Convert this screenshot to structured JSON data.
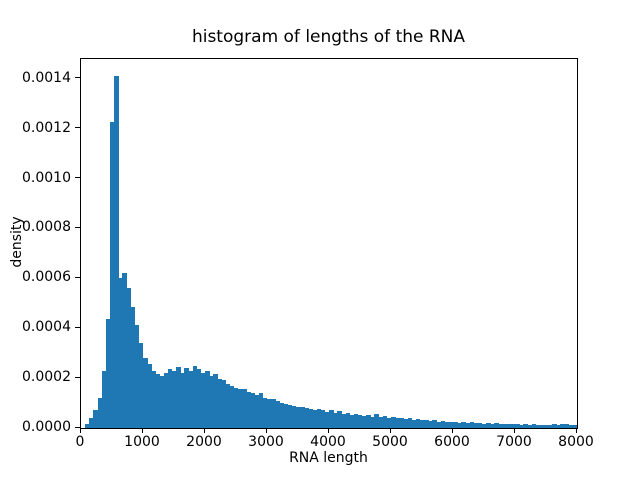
{
  "figure": {
    "background_color": "#ffffff",
    "text_color": "#000000"
  },
  "chart_data": {
    "type": "bar",
    "variant": "histogram",
    "title": "histogram of lengths of the RNA",
    "xlabel": "RNA length",
    "ylabel": "density",
    "bar_color": "#1f77b4",
    "grid": false,
    "legend": null,
    "xlim": [
      0,
      8000
    ],
    "ylim": [
      0,
      0.001479
    ],
    "bin_start": 0,
    "bin_width": 66.6667,
    "x_ticks": [
      0,
      1000,
      2000,
      3000,
      4000,
      5000,
      6000,
      7000,
      8000
    ],
    "x_tick_labels": [
      "0",
      "1000",
      "2000",
      "3000",
      "4000",
      "5000",
      "6000",
      "7000",
      "8000"
    ],
    "y_ticks": [
      0.0,
      0.0002,
      0.0004,
      0.0006,
      0.0008,
      0.001,
      0.0012,
      0.0014
    ],
    "y_tick_labels": [
      "0.0000",
      "0.0002",
      "0.0004",
      "0.0006",
      "0.0008",
      "0.0010",
      "0.0012",
      "0.0014"
    ],
    "values": [
      2e-06,
      1.5e-05,
      4.1e-05,
      7.4e-05,
      0.00012,
      0.00023,
      0.000435,
      0.001228,
      0.001412,
      0.0006,
      0.00062,
      0.00056,
      0.000487,
      0.000414,
      0.000341,
      0.000281,
      0.000255,
      0.000228,
      0.000215,
      0.000208,
      0.000221,
      0.000235,
      0.000228,
      0.000244,
      0.000221,
      0.000239,
      0.000228,
      0.000248,
      0.000237,
      0.000219,
      0.000228,
      0.000208,
      0.000217,
      0.000197,
      0.000191,
      0.000175,
      0.000168,
      0.000161,
      0.000155,
      0.000157,
      0.000144,
      0.000139,
      0.000131,
      0.000139,
      0.000121,
      0.000115,
      0.000117,
      0.000108,
      0.000101,
      9.5e-05,
      9.1e-05,
      8.8e-05,
      8.4e-05,
      8.6e-05,
      8e-05,
      7.8e-05,
      7.4e-05,
      7.6e-05,
      7.1e-05,
      6.5e-05,
      7.1e-05,
      6.1e-05,
      6.8e-05,
      5.7e-05,
      6.1e-05,
      5.2e-05,
      5.5e-05,
      5.1e-05,
      4.8e-05,
      5.1e-05,
      4.5e-05,
      5.5e-05,
      4.4e-05,
      4.7e-05,
      4.1e-05,
      4.4e-05,
      3.9e-05,
      4.1e-05,
      3.6e-05,
      3.9e-05,
      3.3e-05,
      3.6e-05,
      3.1e-05,
      3.3e-05,
      2.8e-05,
      3.1e-05,
      2.5e-05,
      2.8e-05,
      2.3e-05,
      2.5e-05,
      2.6e-05,
      2.2e-05,
      2.4e-05,
      2e-05,
      2.3e-05,
      1.9e-05,
      2.2e-05,
      1.8e-05,
      2e-05,
      1.7e-05,
      1.9e-05,
      1.6e-05,
      1.8e-05,
      1.5e-05,
      1.7e-05,
      1.6e-05,
      1.4e-05,
      1.6e-05,
      1.3e-05,
      1.5e-05,
      1.4e-05,
      1.2e-05,
      1.4e-05,
      1.3e-05,
      1.5e-05,
      1.2e-05,
      1.7e-05,
      1.6e-05,
      1.2e-05,
      1.3e-05
    ]
  }
}
